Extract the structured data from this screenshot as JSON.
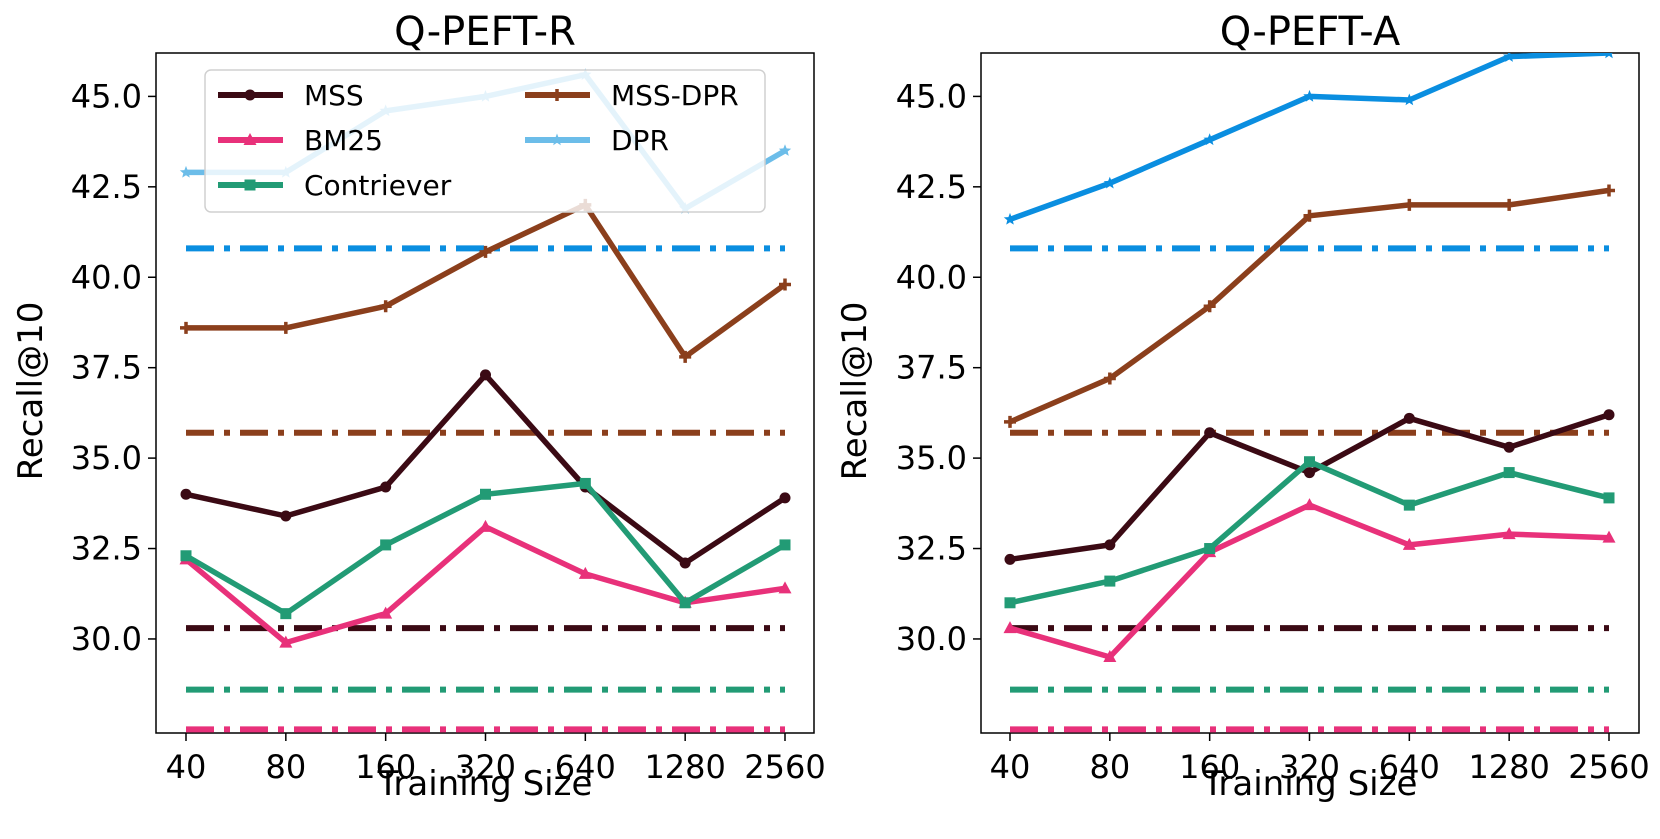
{
  "chart_data": [
    {
      "type": "line",
      "title": "Q-PEFT-R",
      "xlabel": "Training Size",
      "ylabel": "Recall@10",
      "x_scale": "log2-categorical",
      "categories": [
        "40",
        "80",
        "160",
        "320",
        "640",
        "1280",
        "2560"
      ],
      "ylim": [
        27.4,
        46.2
      ],
      "yticks": [
        "30.0",
        "32.5",
        "35.0",
        "37.5",
        "40.0",
        "42.5",
        "45.0"
      ],
      "grid": false,
      "legend": {
        "placement": "top-left",
        "columns": 2,
        "entries": [
          "MSS",
          "BM25",
          "Contriever",
          "MSS-DPR",
          "DPR"
        ]
      },
      "series": [
        {
          "name": "MSS",
          "color": "#3b0a14",
          "marker": "circle",
          "values": [
            34.0,
            33.4,
            34.2,
            37.3,
            34.2,
            32.1,
            33.9
          ]
        },
        {
          "name": "BM25",
          "color": "#e8317a",
          "marker": "triangle",
          "values": [
            32.2,
            29.9,
            30.7,
            33.1,
            31.8,
            31.0,
            31.4
          ]
        },
        {
          "name": "Contriever",
          "color": "#229b75",
          "marker": "square",
          "values": [
            32.3,
            30.7,
            32.6,
            34.0,
            34.3,
            31.0,
            32.6
          ]
        },
        {
          "name": "MSS-DPR",
          "color": "#8b3f1c",
          "marker": "plus",
          "values": [
            38.6,
            38.6,
            39.2,
            40.7,
            42.0,
            37.8,
            39.8
          ]
        },
        {
          "name": "DPR",
          "color": "#6cbde9",
          "marker": "star",
          "values": [
            42.9,
            42.9,
            44.6,
            45.0,
            45.6,
            41.9,
            43.5
          ]
        }
      ],
      "baselines": [
        {
          "name": "DPR",
          "color": "#0a8ee0",
          "value": 40.8
        },
        {
          "name": "MSS-DPR",
          "color": "#8b3f1c",
          "value": 35.7
        },
        {
          "name": "MSS",
          "color": "#3b0a14",
          "value": 30.3
        },
        {
          "name": "Contriever",
          "color": "#229b75",
          "value": 28.6
        },
        {
          "name": "BM25",
          "color": "#e8317a",
          "value": 27.5
        }
      ]
    },
    {
      "type": "line",
      "title": "Q-PEFT-A",
      "xlabel": "Training Size",
      "ylabel": "Recall@10",
      "x_scale": "log2-categorical",
      "categories": [
        "40",
        "80",
        "160",
        "320",
        "640",
        "1280",
        "2560"
      ],
      "ylim": [
        27.4,
        46.2
      ],
      "yticks": [
        "30.0",
        "32.5",
        "35.0",
        "37.5",
        "40.0",
        "42.5",
        "45.0"
      ],
      "grid": false,
      "series": [
        {
          "name": "MSS",
          "color": "#3b0a14",
          "marker": "circle",
          "values": [
            32.2,
            32.6,
            35.7,
            34.6,
            36.1,
            35.3,
            36.2
          ]
        },
        {
          "name": "BM25",
          "color": "#e8317a",
          "marker": "triangle",
          "values": [
            30.3,
            29.5,
            32.4,
            33.7,
            32.6,
            32.9,
            32.8
          ]
        },
        {
          "name": "Contriever",
          "color": "#229b75",
          "marker": "square",
          "values": [
            31.0,
            31.6,
            32.5,
            34.9,
            33.7,
            34.6,
            33.9
          ]
        },
        {
          "name": "MSS-DPR",
          "color": "#8b3f1c",
          "marker": "plus",
          "values": [
            36.0,
            37.2,
            39.2,
            41.7,
            42.0,
            42.0,
            42.4
          ]
        },
        {
          "name": "DPR",
          "color": "#0a8ee0",
          "marker": "star",
          "values": [
            41.6,
            42.6,
            43.8,
            45.0,
            44.9,
            46.1,
            46.2
          ]
        }
      ],
      "baselines": [
        {
          "name": "DPR",
          "color": "#0a8ee0",
          "value": 40.8
        },
        {
          "name": "MSS-DPR",
          "color": "#8b3f1c",
          "value": 35.7
        },
        {
          "name": "MSS",
          "color": "#3b0a14",
          "value": 30.3
        },
        {
          "name": "Contriever",
          "color": "#229b75",
          "value": 28.6
        },
        {
          "name": "BM25",
          "color": "#e8317a",
          "value": 27.5
        }
      ]
    }
  ]
}
